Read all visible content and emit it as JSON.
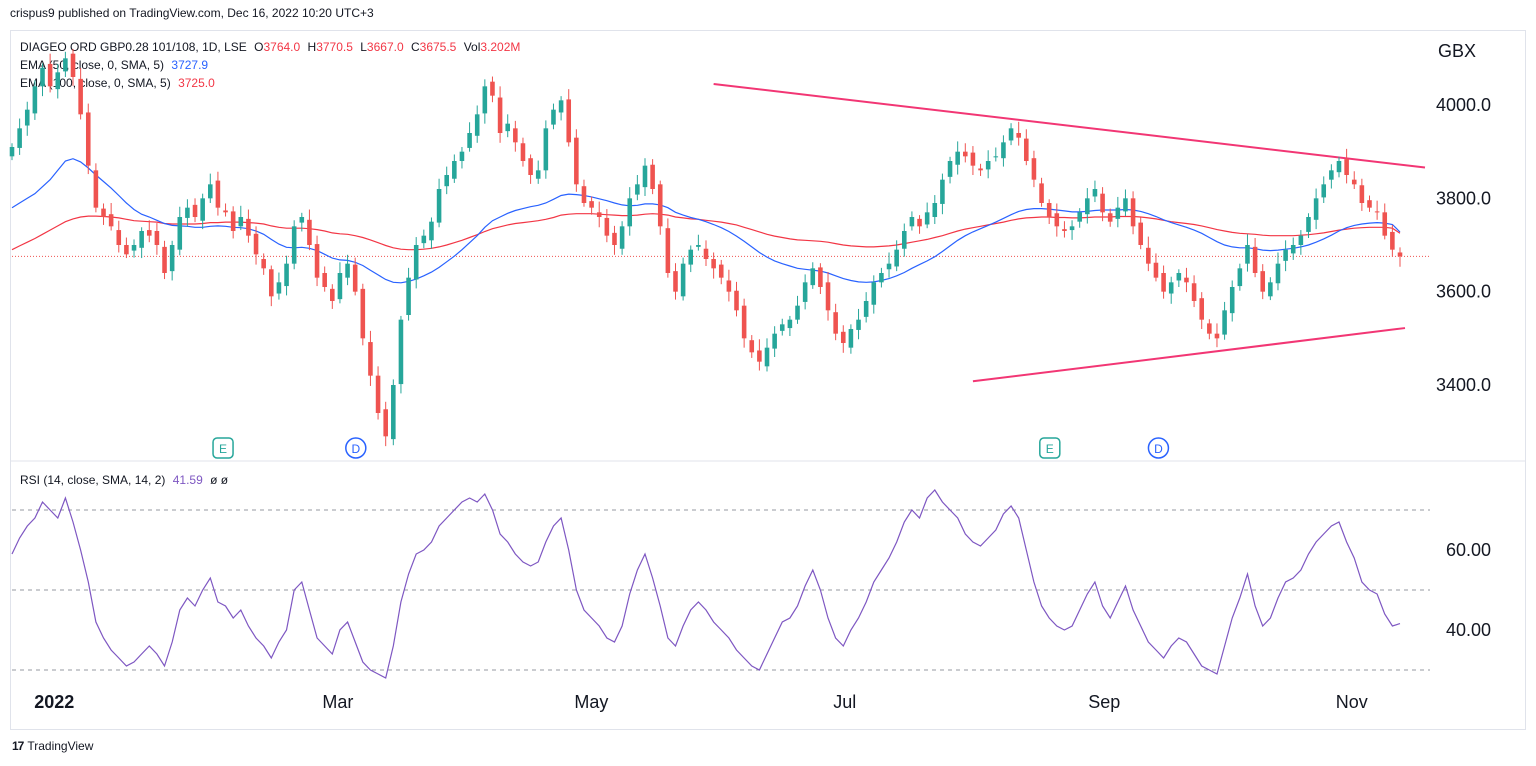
{
  "header": {
    "publisher_text": "crispus9 published on TradingView.com, Dec 16, 2022 10:20 UTC+3"
  },
  "legend": {
    "symbol": "DIAGEO ORD GBP0.28 101/108, 1D, LSE",
    "open_label": "O",
    "open": "3764.0",
    "high_label": "H",
    "high": "3770.5",
    "low_label": "L",
    "low": "3667.0",
    "close_label": "C",
    "close": "3675.5",
    "vol_label": "Vol",
    "vol": "3.202M",
    "ema50_label": "EMA (50, close, 0, SMA, 5)",
    "ema50_value": "3727.9",
    "ema100_label": "EMA (100, close, 0, SMA, 5)",
    "ema100_value": "3725.0",
    "rsi_label": "RSI (14, close, SMA, 14, 2)",
    "rsi_value": "41.59",
    "rsi_extra": "ø ø"
  },
  "price_axis": {
    "unit": "GBX",
    "ticks": [
      "4000.0",
      "3800.0",
      "3600.0",
      "3400.0"
    ]
  },
  "rsi_axis": {
    "ticks": [
      "60.00",
      "40.00"
    ]
  },
  "x_axis": {
    "ticks": [
      "2022",
      "Mar",
      "May",
      "Jul",
      "Sep",
      "Nov"
    ]
  },
  "event_markers": [
    {
      "letter": "E",
      "kind": "earnings"
    },
    {
      "letter": "D",
      "kind": "dividend"
    },
    {
      "letter": "E",
      "kind": "earnings"
    },
    {
      "letter": "D",
      "kind": "dividend"
    }
  ],
  "footer": {
    "brand": "TradingView",
    "logo_glyph": "17"
  },
  "colors": {
    "up": "#26a69a",
    "down": "#ef5350",
    "ema50": "#2962ff",
    "ema100": "#f23645",
    "trendline": "#f23674",
    "rsi": "#7e57c2"
  },
  "chart_data": [
    {
      "type": "candlestick",
      "title": "DIAGEO ORD GBP0.28 101/108, 1D, LSE",
      "ylabel": "GBX",
      "x_ticks": [
        "2022",
        "Mar",
        "May",
        "Jul",
        "Sep",
        "Nov"
      ],
      "y_ticks": [
        4000,
        3800,
        3600,
        3400
      ],
      "ylim": [
        3250,
        4150
      ],
      "last_close": 3675.5,
      "closes": [
        3910,
        3950,
        3990,
        4040,
        4080,
        4040,
        4070,
        4100,
        4060,
        3980,
        3870,
        3780,
        3760,
        3740,
        3700,
        3680,
        3700,
        3730,
        3720,
        3700,
        3640,
        3700,
        3760,
        3780,
        3760,
        3800,
        3830,
        3780,
        3770,
        3730,
        3760,
        3720,
        3680,
        3650,
        3590,
        3620,
        3660,
        3740,
        3760,
        3700,
        3630,
        3610,
        3580,
        3640,
        3660,
        3600,
        3500,
        3420,
        3340,
        3290,
        3400,
        3540,
        3630,
        3700,
        3720,
        3750,
        3820,
        3850,
        3880,
        3900,
        3940,
        3980,
        4040,
        4020,
        3940,
        3960,
        3920,
        3880,
        3850,
        3860,
        3950,
        3990,
        4010,
        3920,
        3830,
        3790,
        3780,
        3760,
        3720,
        3700,
        3740,
        3800,
        3830,
        3870,
        3820,
        3740,
        3640,
        3600,
        3660,
        3690,
        3700,
        3670,
        3650,
        3630,
        3600,
        3560,
        3500,
        3470,
        3450,
        3480,
        3510,
        3530,
        3540,
        3570,
        3620,
        3650,
        3610,
        3560,
        3510,
        3490,
        3520,
        3540,
        3580,
        3620,
        3640,
        3660,
        3690,
        3730,
        3760,
        3740,
        3770,
        3790,
        3840,
        3880,
        3900,
        3890,
        3870,
        3860,
        3880,
        3890,
        3920,
        3950,
        3930,
        3880,
        3840,
        3790,
        3760,
        3740,
        3730,
        3740,
        3770,
        3800,
        3820,
        3770,
        3750,
        3780,
        3800,
        3740,
        3700,
        3660,
        3630,
        3600,
        3620,
        3640,
        3620,
        3580,
        3540,
        3510,
        3500,
        3560,
        3610,
        3650,
        3700,
        3640,
        3600,
        3620,
        3660,
        3690,
        3700,
        3720,
        3760,
        3800,
        3830,
        3860,
        3880,
        3850,
        3830,
        3790,
        3780,
        3770,
        3720,
        3690,
        3675.5
      ],
      "ema50": [
        3780,
        3790,
        3800,
        3810,
        3825,
        3840,
        3860,
        3880,
        3885,
        3878,
        3865,
        3850,
        3836,
        3822,
        3806,
        3790,
        3776,
        3766,
        3760,
        3753,
        3746,
        3742,
        3741,
        3740,
        3738,
        3738,
        3740,
        3741,
        3740,
        3738,
        3737,
        3735,
        3730,
        3723,
        3712,
        3702,
        3695,
        3694,
        3695,
        3693,
        3688,
        3680,
        3672,
        3668,
        3667,
        3663,
        3656,
        3646,
        3636,
        3626,
        3620,
        3619,
        3622,
        3627,
        3634,
        3642,
        3652,
        3664,
        3676,
        3690,
        3705,
        3720,
        3738,
        3752,
        3760,
        3768,
        3774,
        3778,
        3782,
        3785,
        3790,
        3798,
        3806,
        3809,
        3808,
        3806,
        3803,
        3799,
        3795,
        3790,
        3786,
        3784,
        3785,
        3788,
        3788,
        3786,
        3780,
        3770,
        3764,
        3759,
        3755,
        3750,
        3744,
        3737,
        3729,
        3719,
        3708,
        3696,
        3684,
        3674,
        3666,
        3660,
        3655,
        3650,
        3648,
        3646,
        3644,
        3640,
        3634,
        3628,
        3624,
        3621,
        3620,
        3621,
        3624,
        3628,
        3634,
        3641,
        3650,
        3658,
        3666,
        3675,
        3686,
        3698,
        3710,
        3720,
        3728,
        3735,
        3742,
        3749,
        3757,
        3765,
        3772,
        3776,
        3778,
        3778,
        3777,
        3775,
        3773,
        3771,
        3771,
        3772,
        3774,
        3775,
        3775,
        3775,
        3776,
        3775,
        3772,
        3767,
        3761,
        3754,
        3748,
        3743,
        3738,
        3732,
        3725,
        3716,
        3707,
        3700,
        3696,
        3694,
        3694,
        3692,
        3689,
        3688,
        3689,
        3691,
        3693,
        3696,
        3700,
        3706,
        3713,
        3721,
        3730,
        3737,
        3742,
        3745,
        3747,
        3748,
        3747,
        3744,
        3727.9
      ],
      "ema100": [
        3690,
        3698,
        3706,
        3714,
        3723,
        3732,
        3741,
        3750,
        3756,
        3760,
        3762,
        3762,
        3761,
        3760,
        3758,
        3755,
        3752,
        3751,
        3750,
        3749,
        3746,
        3745,
        3745,
        3745,
        3745,
        3746,
        3748,
        3748,
        3749,
        3749,
        3749,
        3748,
        3747,
        3745,
        3741,
        3738,
        3736,
        3736,
        3736,
        3735,
        3733,
        3730,
        3726,
        3724,
        3723,
        3720,
        3716,
        3711,
        3705,
        3699,
        3694,
        3691,
        3690,
        3690,
        3691,
        3693,
        3696,
        3700,
        3705,
        3710,
        3716,
        3722,
        3729,
        3735,
        3739,
        3743,
        3746,
        3748,
        3750,
        3752,
        3755,
        3759,
        3764,
        3766,
        3767,
        3767,
        3767,
        3766,
        3765,
        3764,
        3763,
        3763,
        3764,
        3766,
        3767,
        3766,
        3764,
        3760,
        3758,
        3756,
        3755,
        3753,
        3751,
        3749,
        3746,
        3743,
        3738,
        3733,
        3728,
        3723,
        3719,
        3716,
        3713,
        3711,
        3710,
        3709,
        3708,
        3706,
        3703,
        3700,
        3698,
        3697,
        3696,
        3696,
        3697,
        3698,
        3700,
        3703,
        3706,
        3709,
        3712,
        3716,
        3720,
        3725,
        3730,
        3734,
        3737,
        3740,
        3743,
        3746,
        3749,
        3753,
        3756,
        3758,
        3759,
        3760,
        3760,
        3759,
        3759,
        3758,
        3758,
        3759,
        3760,
        3760,
        3760,
        3761,
        3761,
        3761,
        3760,
        3758,
        3756,
        3753,
        3750,
        3748,
        3746,
        3744,
        3741,
        3737,
        3733,
        3730,
        3727,
        3725,
        3724,
        3723,
        3721,
        3720,
        3720,
        3720,
        3720,
        3721,
        3722,
        3724,
        3726,
        3729,
        3732,
        3734,
        3736,
        3737,
        3738,
        3738,
        3738,
        3736,
        3725.0
      ]
    },
    {
      "type": "line",
      "title": "RSI (14, close, SMA, 14, 2)",
      "y_ticks": [
        60,
        40
      ],
      "ylim": [
        25,
        80
      ],
      "bands": [
        70,
        50,
        30
      ],
      "last_value": 41.59,
      "values": [
        59,
        63,
        66,
        68,
        72,
        70,
        68,
        73,
        67,
        60,
        52,
        42,
        38,
        35,
        33,
        31,
        32,
        34,
        36,
        34,
        31,
        37,
        45,
        48,
        46,
        50,
        53,
        47,
        46,
        43,
        45,
        41,
        38,
        36,
        33,
        37,
        40,
        50,
        52,
        45,
        38,
        36,
        34,
        40,
        42,
        37,
        32,
        30,
        29,
        28,
        36,
        47,
        54,
        59,
        60,
        62,
        66,
        68,
        70,
        72,
        73,
        72,
        74,
        70,
        64,
        62,
        59,
        57,
        56,
        57,
        62,
        66,
        68,
        60,
        50,
        45,
        43,
        41,
        38,
        37,
        41,
        49,
        55,
        59,
        53,
        46,
        38,
        36,
        41,
        45,
        47,
        45,
        42,
        40,
        38,
        35,
        33,
        31,
        30,
        34,
        38,
        42,
        43,
        46,
        51,
        55,
        50,
        43,
        38,
        36,
        40,
        43,
        47,
        52,
        55,
        58,
        62,
        67,
        70,
        68,
        73,
        75,
        72,
        70,
        68,
        64,
        62,
        61,
        63,
        65,
        69,
        71,
        68,
        60,
        52,
        46,
        43,
        41,
        40,
        41,
        45,
        49,
        52,
        46,
        43,
        47,
        51,
        45,
        41,
        37,
        35,
        33,
        36,
        38,
        37,
        34,
        31,
        30,
        29,
        36,
        43,
        48,
        54,
        46,
        41,
        43,
        48,
        52,
        53,
        55,
        59,
        62,
        64,
        66,
        67,
        62,
        58,
        52,
        50,
        49,
        44,
        41,
        41.59
      ]
    }
  ]
}
